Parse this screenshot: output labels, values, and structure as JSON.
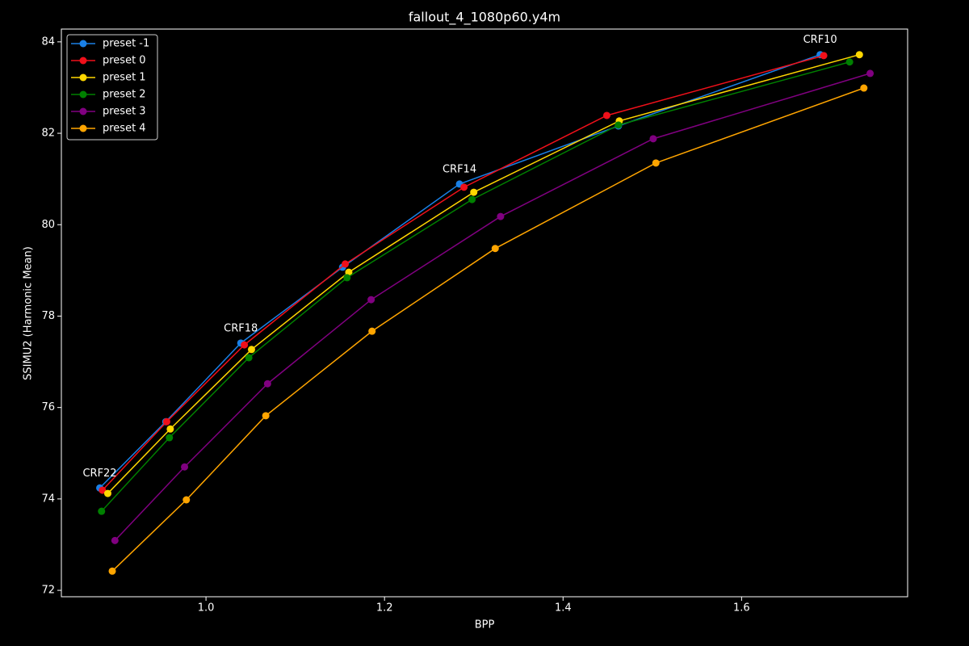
{
  "chart_data": {
    "type": "line",
    "title": "fallout_4_1080p60.y4m",
    "x_label": "BPP",
    "y_label": "SSIMU2 (Harmonic Mean)",
    "xlim": [
      0.838,
      1.786
    ],
    "ylim": [
      71.86,
      84.28
    ],
    "xticks": [
      {
        "value": 1,
        "label": "1.0"
      },
      {
        "value": 1.2,
        "label": "1.2"
      },
      {
        "value": 1.4,
        "label": "1.4"
      },
      {
        "value": 1.6,
        "label": "1.6"
      }
    ],
    "yticks": [
      72,
      74,
      76,
      78,
      80,
      82,
      84
    ],
    "legend": "upper left",
    "annotations": [
      "CRF22",
      "CRF18",
      "CRF14",
      "CRF10"
    ],
    "series": [
      {
        "name": "preset -1",
        "color": "#1a80e6",
        "x": [
          0.881,
          0.955,
          1.039,
          1.153,
          1.284,
          1.462,
          1.688
        ],
        "values": [
          74.24,
          75.69,
          77.41,
          79.07,
          80.89,
          82.16,
          83.72
        ]
      },
      {
        "name": "preset 0",
        "color": "#f0101a",
        "x": [
          0.884,
          0.956,
          1.043,
          1.156,
          1.289,
          1.449,
          1.692
        ],
        "values": [
          74.19,
          75.69,
          77.37,
          79.14,
          80.82,
          82.39,
          83.7
        ]
      },
      {
        "name": "preset 1",
        "color": "#ffd700",
        "x": [
          0.89,
          0.96,
          1.051,
          1.16,
          1.3,
          1.463,
          1.732
        ],
        "values": [
          74.12,
          75.53,
          77.27,
          78.96,
          80.71,
          82.27,
          83.72
        ]
      },
      {
        "name": "preset 2",
        "color": "#008000",
        "x": [
          0.883,
          0.959,
          1.048,
          1.158,
          1.298,
          1.462,
          1.721
        ],
        "values": [
          73.73,
          75.34,
          77.09,
          78.84,
          80.55,
          82.18,
          83.56
        ]
      },
      {
        "name": "preset 3",
        "color": "#800080",
        "x": [
          0.898,
          0.976,
          1.069,
          1.185,
          1.33,
          1.501,
          1.744
        ],
        "values": [
          73.09,
          74.7,
          76.52,
          78.36,
          80.18,
          81.88,
          83.31
        ]
      },
      {
        "name": "preset 4",
        "color": "#ffa500",
        "x": [
          0.895,
          0.978,
          1.067,
          1.186,
          1.324,
          1.504,
          1.737
        ],
        "values": [
          72.42,
          73.98,
          75.82,
          77.67,
          79.48,
          81.35,
          82.99
        ]
      }
    ]
  }
}
